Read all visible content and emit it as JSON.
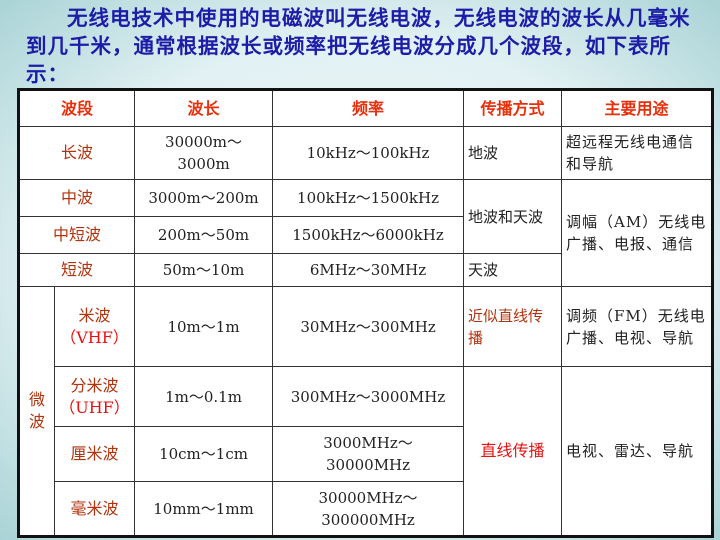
{
  "intro": "无线电技术中使用的电磁波叫无线电波，无线电波的波长从几毫米到几千米，通常根据波长或频率把无线电波分成几个波段，如下表所示：",
  "headers": [
    "波段",
    "波长",
    "频率",
    "传播方式",
    "主要用途"
  ],
  "rows": [
    {
      "band": "长波",
      "wavelength": "30000m～3000m",
      "frequency": "10kHz～100kHz"
    },
    {
      "band": "中波",
      "wavelength": "3000m～200m",
      "frequency": "100kHz～1500kHz"
    },
    {
      "band": "中短波",
      "wavelength": "200m～50m",
      "frequency": "1500kHz～6000kHz"
    },
    {
      "band": "短波",
      "wavelength": "50m～10m",
      "frequency": "6MHz～30MHz"
    },
    {
      "band": "米波",
      "abbr": "（VHF）",
      "wavelength": "10m～1m",
      "frequency": "30MHz～300MHz"
    },
    {
      "band": "分米波",
      "abbr": "（UHF）",
      "wavelength": "1m～0.1m",
      "frequency": "300MHz～3000MHz"
    },
    {
      "band": "厘米波",
      "wavelength": "10cm～1cm",
      "frequency": "3000MHz～30000MHz"
    },
    {
      "band": "毫米波",
      "wavelength": "10mm～1mm",
      "frequency": "30000MHz～300000MHz"
    }
  ],
  "microwave_group": "微波",
  "propagation": {
    "long": "地波",
    "medium": "地波和天波",
    "short": "天波",
    "vhf": "近似直线传播",
    "straight": "直线传播"
  },
  "uses": {
    "long": "超远程无线电通信和导航",
    "am": "调幅（AM）无线电广播、电报、通信",
    "fm": "调频（FM）无线电广播、电视、导航",
    "micro": "电视、雷达、导航"
  }
}
